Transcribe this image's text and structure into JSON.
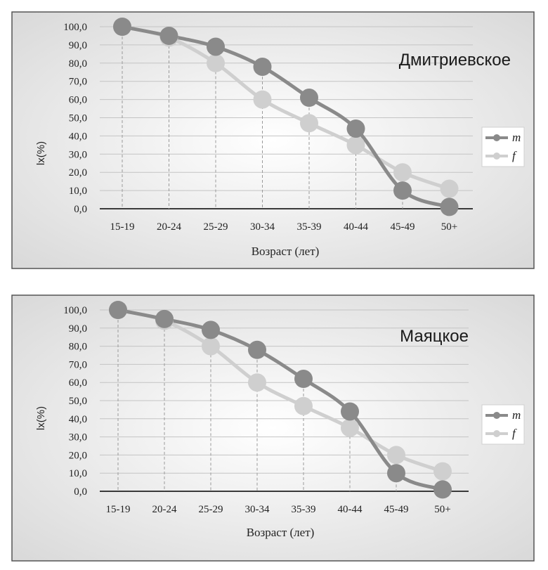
{
  "chart_data": [
    {
      "type": "line",
      "title": "Дмитриевское",
      "xlabel": "Возраст (лет)",
      "ylabel": "lx(%)",
      "categories": [
        "15-19",
        "20-24",
        "25-29",
        "30-34",
        "35-39",
        "40-44",
        "45-49",
        "50+"
      ],
      "ylim": [
        0,
        100
      ],
      "yticks": [
        "0,0",
        "10,0",
        "20,0",
        "30,0",
        "40,0",
        "50,0",
        "60,0",
        "70,0",
        "80,0",
        "90,0",
        "100,0"
      ],
      "grid": true,
      "legend_position": "right",
      "series": [
        {
          "name": "m",
          "color": "#8a8a8a",
          "values": [
            100,
            95,
            89,
            78,
            61,
            44,
            10,
            1
          ]
        },
        {
          "name": "f",
          "color": "#cfcfcf",
          "values": [
            100,
            94,
            80,
            60,
            47,
            35,
            20,
            11
          ]
        }
      ]
    },
    {
      "type": "line",
      "title": "Маяцкое",
      "xlabel": "Возраст (лет)",
      "ylabel": "lx(%)",
      "categories": [
        "15-19",
        "20-24",
        "25-29",
        "30-34",
        "35-39",
        "40-44",
        "45-49",
        "50+"
      ],
      "ylim": [
        0,
        100
      ],
      "yticks": [
        "0,0",
        "10,0",
        "20,0",
        "30,0",
        "40,0",
        "50,0",
        "60,0",
        "70,0",
        "80,0",
        "90,0",
        "100,0"
      ],
      "grid": true,
      "legend_position": "right",
      "series": [
        {
          "name": "m",
          "color": "#8a8a8a",
          "values": [
            100,
            95,
            89,
            78,
            62,
            44,
            10,
            1
          ]
        },
        {
          "name": "f",
          "color": "#cfcfcf",
          "values": [
            100,
            94,
            80,
            60,
            47,
            35,
            20,
            11
          ]
        }
      ]
    }
  ]
}
